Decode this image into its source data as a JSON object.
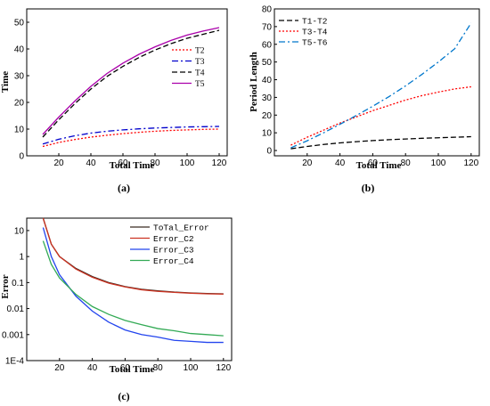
{
  "chart_data": [
    {
      "type": "line",
      "caption": "(a)",
      "xlabel": "Total Time",
      "ylabel": "Time",
      "xlim": [
        0,
        125
      ],
      "ylim": [
        0,
        55
      ],
      "xticks": [
        20,
        40,
        60,
        80,
        100,
        120
      ],
      "yticks": [
        0,
        10,
        20,
        30,
        40,
        50
      ],
      "x": [
        10,
        20,
        30,
        40,
        50,
        60,
        70,
        80,
        90,
        100,
        110,
        120
      ],
      "series": [
        {
          "name": "T2",
          "color": "#ff0000",
          "dash": "dot",
          "values": [
            3.5,
            5.0,
            6.1,
            7.0,
            7.7,
            8.3,
            8.8,
            9.2,
            9.5,
            9.7,
            9.9,
            10.0
          ]
        },
        {
          "name": "T3",
          "color": "#0000cc",
          "dash": "dashdot",
          "values": [
            4.4,
            6.2,
            7.5,
            8.5,
            9.2,
            9.7,
            10.1,
            10.4,
            10.6,
            10.8,
            10.9,
            11.0
          ]
        },
        {
          "name": "T4",
          "color": "#000000",
          "dash": "dash",
          "values": [
            7.0,
            13.5,
            19.5,
            25.0,
            29.7,
            33.5,
            36.8,
            39.6,
            42.0,
            44.0,
            45.5,
            47.0
          ]
        },
        {
          "name": "T5",
          "color": "#aa00aa",
          "dash": "solid",
          "values": [
            8.0,
            14.5,
            20.5,
            26.0,
            30.8,
            34.7,
            38.0,
            40.8,
            43.2,
            45.2,
            46.7,
            48.0
          ]
        }
      ],
      "legend": "right"
    },
    {
      "type": "line",
      "caption": "(b)",
      "xlabel": "Total Time",
      "ylabel": "Period Length",
      "xlim": [
        0,
        125
      ],
      "ylim": [
        -3,
        80
      ],
      "xticks": [
        20,
        40,
        60,
        80,
        100,
        120
      ],
      "yticks": [
        0,
        10,
        20,
        30,
        40,
        50,
        60,
        70,
        80
      ],
      "x": [
        10,
        20,
        30,
        40,
        50,
        60,
        70,
        80,
        90,
        100,
        110,
        120
      ],
      "series": [
        {
          "name": "T1-T2",
          "color": "#000000",
          "dash": "dash",
          "values": [
            1.0,
            2.3,
            3.4,
            4.3,
            5.0,
            5.6,
            6.1,
            6.5,
            6.9,
            7.2,
            7.5,
            7.8
          ]
        },
        {
          "name": "T3-T4",
          "color": "#ff0000",
          "dash": "dot",
          "values": [
            3.0,
            7.5,
            11.5,
            15.5,
            19.0,
            22.5,
            25.5,
            28.5,
            31.0,
            33.0,
            34.8,
            36.0
          ]
        },
        {
          "name": "T5-T6",
          "color": "#0077cc",
          "dash": "dashdot",
          "values": [
            1.5,
            5.5,
            10.0,
            14.8,
            19.8,
            25.0,
            30.5,
            36.5,
            43.0,
            50.0,
            57.5,
            72.0
          ]
        }
      ],
      "legend": "top-left"
    },
    {
      "type": "line",
      "caption": "(c)",
      "xlabel": "Total Time",
      "ylabel": "Error",
      "xlim": [
        0,
        125
      ],
      "yscale": "log",
      "ylim": [
        0.0001,
        30
      ],
      "xticks": [
        20,
        40,
        60,
        80,
        100,
        120
      ],
      "yticks": [
        10,
        1,
        0.1,
        0.01,
        0.001,
        0.0001
      ],
      "ytick_labels": [
        "10",
        "1",
        "0.1",
        "0.01",
        "0.001",
        "1E-4"
      ],
      "x": [
        10,
        15,
        20,
        30,
        40,
        50,
        60,
        70,
        80,
        90,
        100,
        110,
        120
      ],
      "series": [
        {
          "name": "ToTal_Error",
          "color": "#3a2a20",
          "dash": "solid",
          "values": [
            30,
            3.0,
            1.0,
            0.35,
            0.17,
            0.1,
            0.07,
            0.055,
            0.048,
            0.043,
            0.04,
            0.038,
            0.037
          ]
        },
        {
          "name": "Error_C2",
          "color": "#cc3322",
          "dash": "solid",
          "values": [
            30,
            3.0,
            1.0,
            0.33,
            0.16,
            0.095,
            0.068,
            0.053,
            0.046,
            0.042,
            0.039,
            0.037,
            0.036
          ]
        },
        {
          "name": "Error_C3",
          "color": "#2244ee",
          "dash": "solid",
          "values": [
            13,
            1.0,
            0.2,
            0.03,
            0.008,
            0.003,
            0.0015,
            0.001,
            0.0008,
            0.0006,
            0.00055,
            0.0005,
            0.0005
          ]
        },
        {
          "name": "Error_C4",
          "color": "#33aa55",
          "dash": "solid",
          "values": [
            4,
            0.5,
            0.15,
            0.035,
            0.012,
            0.006,
            0.0035,
            0.0024,
            0.0017,
            0.0014,
            0.0011,
            0.001,
            0.0009
          ]
        }
      ],
      "legend": "top-right"
    }
  ]
}
